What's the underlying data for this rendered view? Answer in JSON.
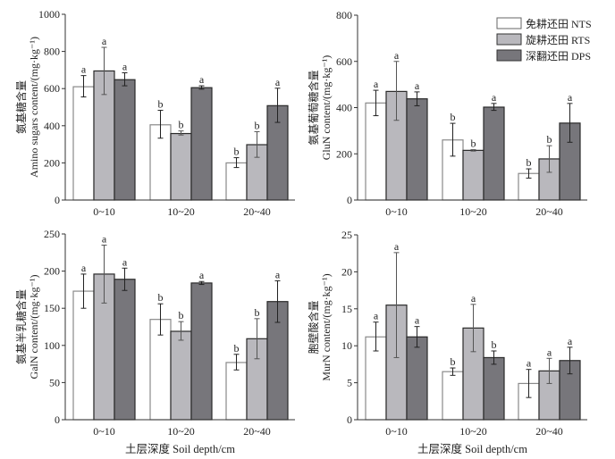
{
  "chart_data": [
    {
      "type": "bar",
      "panel": "top-left",
      "ylabel_cn": "氨基糖含量",
      "ylabel": "Amino sugars content/(mg·kg⁻¹)",
      "xlabel": "",
      "ylim": [
        0,
        1000
      ],
      "yticks": [
        0,
        200,
        400,
        600,
        800,
        1000
      ],
      "categories": [
        "0~10",
        "10~20",
        "20~40"
      ],
      "series": [
        {
          "name": "免耕还田 NTS",
          "values": [
            610,
            405,
            200
          ],
          "err_low": [
            555,
            333,
            175
          ],
          "err_high": [
            670,
            483,
            228
          ],
          "letters": [
            "a",
            "b",
            "b"
          ]
        },
        {
          "name": "旋耕还田 RTS",
          "values": [
            695,
            358,
            298
          ],
          "err_low": [
            568,
            350,
            230
          ],
          "err_high": [
            822,
            372,
            368
          ],
          "letters": [
            "a",
            "b",
            "b"
          ]
        },
        {
          "name": "深翻还田 DPS",
          "values": [
            648,
            605,
            508
          ],
          "err_low": [
            615,
            597,
            418
          ],
          "err_high": [
            685,
            615,
            602
          ],
          "letters": [
            "a",
            "a",
            "a"
          ]
        }
      ]
    },
    {
      "type": "bar",
      "panel": "top-right",
      "ylabel_cn": "氨基葡萄糖含量",
      "ylabel": "GluN content/(mg·kg⁻¹)",
      "xlabel": "",
      "ylim": [
        0,
        800
      ],
      "yticks": [
        0,
        200,
        400,
        600,
        800
      ],
      "categories": [
        "0~10",
        "10~20",
        "20~40"
      ],
      "legend": "top-right",
      "series": [
        {
          "name": "免耕还田 NTS",
          "values": [
            420,
            260,
            115
          ],
          "err_low": [
            365,
            190,
            95
          ],
          "err_high": [
            475,
            332,
            135
          ],
          "letters": [
            "a",
            "b",
            "b"
          ]
        },
        {
          "name": "旋耕还田 RTS",
          "values": [
            470,
            215,
            178
          ],
          "err_low": [
            345,
            212,
            120
          ],
          "err_high": [
            600,
            218,
            235
          ],
          "letters": [
            "a",
            "b",
            "b"
          ]
        },
        {
          "name": "深翻还田 DPS",
          "values": [
            438,
            402,
            333
          ],
          "err_low": [
            408,
            388,
            250
          ],
          "err_high": [
            468,
            418,
            418
          ],
          "letters": [
            "a",
            "a",
            "a"
          ]
        }
      ]
    },
    {
      "type": "bar",
      "panel": "bottom-left",
      "ylabel_cn": "氨基半乳糖含量",
      "ylabel": "GalN content/(mg·kg⁻¹)",
      "xlabel": "土层深度 Soil depth/cm",
      "ylim": [
        0,
        250
      ],
      "yticks": [
        0,
        50,
        100,
        150,
        200,
        250
      ],
      "categories": [
        "0~10",
        "10~20",
        "20~40"
      ],
      "series": [
        {
          "name": "免耕还田 NTS",
          "values": [
            173,
            135,
            77
          ],
          "err_low": [
            150,
            114,
            67
          ],
          "err_high": [
            196,
            156,
            88
          ],
          "letters": [
            "a",
            "b",
            "b"
          ]
        },
        {
          "name": "旋耕还田 RTS",
          "values": [
            196,
            119,
            109
          ],
          "err_low": [
            157,
            107,
            82
          ],
          "err_high": [
            235,
            132,
            136
          ],
          "letters": [
            "a",
            "b",
            "b"
          ]
        },
        {
          "name": "深翻还田 DPS",
          "values": [
            189,
            184,
            159
          ],
          "err_low": [
            174,
            182,
            131
          ],
          "err_high": [
            204,
            186,
            187
          ],
          "letters": [
            "a",
            "a",
            "a"
          ]
        }
      ]
    },
    {
      "type": "bar",
      "panel": "bottom-right",
      "ylabel_cn": "胞壁酸含量",
      "ylabel": "MurN content/(mg·kg⁻¹)",
      "xlabel": "土层深度 Soil depth/cm",
      "ylim": [
        0,
        25
      ],
      "yticks": [
        0,
        5,
        10,
        15,
        20,
        25
      ],
      "categories": [
        "0~10",
        "10~20",
        "20~40"
      ],
      "series": [
        {
          "name": "免耕还田 NTS",
          "values": [
            11.2,
            6.5,
            4.9
          ],
          "err_low": [
            9.3,
            6.0,
            3.0
          ],
          "err_high": [
            13.2,
            7.0,
            6.8
          ],
          "letters": [
            "a",
            "b",
            "a"
          ]
        },
        {
          "name": "旋耕还田 RTS",
          "values": [
            15.5,
            12.4,
            6.6
          ],
          "err_low": [
            8.4,
            9.2,
            4.9
          ],
          "err_high": [
            22.6,
            15.6,
            8.3
          ],
          "letters": [
            "a",
            "a",
            "a"
          ]
        },
        {
          "name": "深翻还田 DPS",
          "values": [
            11.2,
            8.4,
            8.0
          ],
          "err_low": [
            9.8,
            7.5,
            6.2
          ],
          "err_high": [
            12.6,
            9.3,
            9.8
          ],
          "letters": [
            "a",
            "b",
            "a"
          ]
        }
      ]
    }
  ],
  "legend": {
    "items": [
      {
        "label": "免耕还田 NTS",
        "color": "#ffffff"
      },
      {
        "label": "旋耕还田 RTS",
        "color": "#b9b8bd"
      },
      {
        "label": "深翻还田 DPS",
        "color": "#77767b"
      }
    ]
  },
  "colors": {
    "NTS": "#ffffff",
    "RTS": "#b9b8bd",
    "DPS": "#77767b",
    "NTS_edge": "#8a8a8a",
    "edge": "#2a2a2a",
    "axis": "#333333"
  }
}
